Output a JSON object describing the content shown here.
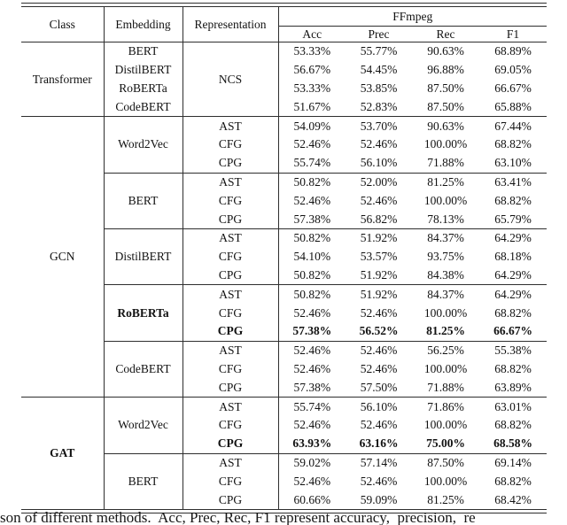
{
  "page": {
    "background": "#ffffff",
    "text_color": "#121212",
    "line_color": "#2e2e2e"
  },
  "table": {
    "headers": {
      "class": "Class",
      "embedding": "Embedding",
      "representation": "Representation",
      "dataset": "FFmpeg",
      "metrics": [
        "Acc",
        "Prec",
        "Rec",
        "F1"
      ]
    },
    "sections": [
      {
        "class": "Transformer",
        "class_bold": false,
        "representation": "NCS",
        "groups": [
          {
            "embedding": "BERT",
            "embedding_bold": false,
            "rows": [
              {
                "bold": false,
                "metrics": [
                  "53.33%",
                  "55.77%",
                  "90.63%",
                  "68.89%"
                ]
              }
            ]
          },
          {
            "embedding": "DistilBERT",
            "embedding_bold": false,
            "rows": [
              {
                "bold": false,
                "metrics": [
                  "56.67%",
                  "54.45%",
                  "96.88%",
                  "69.05%"
                ]
              }
            ]
          },
          {
            "embedding": "RoBERTa",
            "embedding_bold": false,
            "rows": [
              {
                "bold": false,
                "metrics": [
                  "53.33%",
                  "53.85%",
                  "87.50%",
                  "66.67%"
                ]
              }
            ]
          },
          {
            "embedding": "CodeBERT",
            "embedding_bold": false,
            "rows": [
              {
                "bold": false,
                "metrics": [
                  "51.67%",
                  "52.83%",
                  "87.50%",
                  "65.88%"
                ]
              }
            ]
          }
        ]
      },
      {
        "class": "GCN",
        "class_bold": false,
        "representation": null,
        "groups": [
          {
            "embedding": "Word2Vec",
            "embedding_bold": false,
            "rows": [
              {
                "rep": "AST",
                "bold": false,
                "metrics": [
                  "54.09%",
                  "53.70%",
                  "90.63%",
                  "67.44%"
                ]
              },
              {
                "rep": "CFG",
                "bold": false,
                "metrics": [
                  "52.46%",
                  "52.46%",
                  "100.00%",
                  "68.82%"
                ]
              },
              {
                "rep": "CPG",
                "bold": false,
                "metrics": [
                  "55.74%",
                  "56.10%",
                  "71.88%",
                  "63.10%"
                ]
              }
            ]
          },
          {
            "embedding": "BERT",
            "embedding_bold": false,
            "rows": [
              {
                "rep": "AST",
                "bold": false,
                "metrics": [
                  "50.82%",
                  "52.00%",
                  "81.25%",
                  "63.41%"
                ]
              },
              {
                "rep": "CFG",
                "bold": false,
                "metrics": [
                  "52.46%",
                  "52.46%",
                  "100.00%",
                  "68.82%"
                ]
              },
              {
                "rep": "CPG",
                "bold": false,
                "metrics": [
                  "57.38%",
                  "56.82%",
                  "78.13%",
                  "65.79%"
                ]
              }
            ]
          },
          {
            "embedding": "DistilBERT",
            "embedding_bold": false,
            "rows": [
              {
                "rep": "AST",
                "bold": false,
                "metrics": [
                  "50.82%",
                  "51.92%",
                  "84.37%",
                  "64.29%"
                ]
              },
              {
                "rep": "CFG",
                "bold": false,
                "metrics": [
                  "54.10%",
                  "53.57%",
                  "93.75%",
                  "68.18%"
                ]
              },
              {
                "rep": "CPG",
                "bold": false,
                "metrics": [
                  "50.82%",
                  "51.92%",
                  "84.38%",
                  "64.29%"
                ]
              }
            ]
          },
          {
            "embedding": "RoBERTa",
            "embedding_bold": true,
            "rows": [
              {
                "rep": "AST",
                "bold": false,
                "metrics": [
                  "50.82%",
                  "51.92%",
                  "84.37%",
                  "64.29%"
                ]
              },
              {
                "rep": "CFG",
                "bold": false,
                "metrics": [
                  "52.46%",
                  "52.46%",
                  "100.00%",
                  "68.82%"
                ]
              },
              {
                "rep": "CPG",
                "bold": true,
                "metrics": [
                  "57.38%",
                  "56.52%",
                  "81.25%",
                  "66.67%"
                ]
              }
            ]
          },
          {
            "embedding": "CodeBERT",
            "embedding_bold": false,
            "rows": [
              {
                "rep": "AST",
                "bold": false,
                "metrics": [
                  "52.46%",
                  "52.46%",
                  "56.25%",
                  "55.38%"
                ]
              },
              {
                "rep": "CFG",
                "bold": false,
                "metrics": [
                  "52.46%",
                  "52.46%",
                  "100.00%",
                  "68.82%"
                ]
              },
              {
                "rep": "CPG",
                "bold": false,
                "metrics": [
                  "57.38%",
                  "57.50%",
                  "71.88%",
                  "63.89%"
                ]
              }
            ]
          }
        ]
      },
      {
        "class": "GAT",
        "class_bold": true,
        "representation": null,
        "groups": [
          {
            "embedding": "Word2Vec",
            "embedding_bold": false,
            "rows": [
              {
                "rep": "AST",
                "bold": false,
                "metrics": [
                  "55.74%",
                  "56.10%",
                  "71.86%",
                  "63.01%"
                ]
              },
              {
                "rep": "CFG",
                "bold": false,
                "metrics": [
                  "52.46%",
                  "52.46%",
                  "100.00%",
                  "68.82%"
                ]
              },
              {
                "rep": "CPG",
                "bold": true,
                "metrics": [
                  "63.93%",
                  "63.16%",
                  "75.00%",
                  "68.58%"
                ]
              }
            ]
          },
          {
            "embedding": "BERT",
            "embedding_bold": false,
            "rows": [
              {
                "rep": "AST",
                "bold": false,
                "metrics": [
                  "59.02%",
                  "57.14%",
                  "87.50%",
                  "69.14%"
                ]
              },
              {
                "rep": "CFG",
                "bold": false,
                "metrics": [
                  "52.46%",
                  "52.46%",
                  "100.00%",
                  "68.82%"
                ]
              },
              {
                "rep": "CPG",
                "bold": false,
                "metrics": [
                  "60.66%",
                  "59.09%",
                  "81.25%",
                  "68.42%"
                ]
              }
            ]
          }
        ]
      }
    ]
  },
  "caption": {
    "text": "son of different methods.  Acc, Prec, Rec, F1 represent accuracy,  precision,  re"
  }
}
